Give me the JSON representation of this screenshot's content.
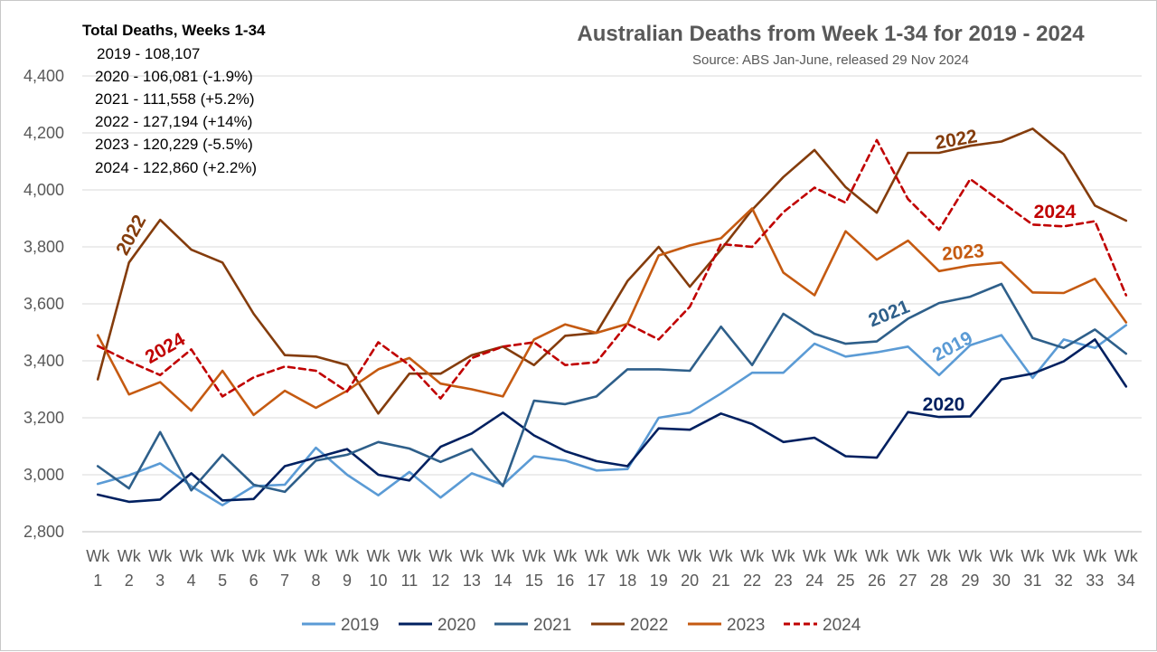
{
  "chart_data": {
    "type": "line",
    "title": "Australian Deaths from Week 1-34 for 2019 - 2024",
    "subtitle": "Source: ABS Jan-June, released 29 Nov 2024",
    "x_prefix": "Wk",
    "x": [
      "1",
      "2",
      "3",
      "4",
      "5",
      "6",
      "7",
      "8",
      "9",
      "10",
      "11",
      "12",
      "13",
      "14",
      "15",
      "16",
      "17",
      "18",
      "19",
      "20",
      "21",
      "22",
      "23",
      "24",
      "25",
      "26",
      "27",
      "28",
      "29",
      "30",
      "31",
      "32",
      "33",
      "34"
    ],
    "ylim": [
      2800,
      4400
    ],
    "yticks": [
      2800,
      3000,
      3200,
      3400,
      3600,
      3800,
      4000,
      4200,
      4400
    ],
    "ytick_labels": [
      "2,800",
      "3,000",
      "3,200",
      "3,400",
      "3,600",
      "3,800",
      "4,000",
      "4,200",
      "4,400"
    ],
    "grid": true,
    "legend_position": "bottom",
    "series": [
      {
        "name": "2019",
        "color": "#5B9BD5",
        "dash": false,
        "values": [
          2968,
          2998,
          3040,
          2960,
          2893,
          2960,
          2965,
          3095,
          3000,
          2928,
          3010,
          2920,
          3005,
          2965,
          3065,
          3050,
          3015,
          3020,
          3200,
          3218,
          3285,
          3358,
          3358,
          3460,
          3415,
          3430,
          3450,
          3350,
          3455,
          3490,
          3340,
          3475,
          3445,
          3525
        ]
      },
      {
        "name": "2020",
        "color": "#002060",
        "dash": false,
        "values": [
          2930,
          2905,
          2913,
          3005,
          2910,
          2915,
          3030,
          3060,
          3090,
          3000,
          2980,
          3098,
          3145,
          3218,
          3138,
          3083,
          3048,
          3030,
          3163,
          3158,
          3215,
          3178,
          3115,
          3130,
          3065,
          3060,
          3220,
          3203,
          3205,
          3335,
          3355,
          3398,
          3475,
          3310
        ]
      },
      {
        "name": "2021",
        "color": "#2E5F8A",
        "dash": false,
        "values": [
          3030,
          2952,
          3150,
          2945,
          3070,
          2965,
          2940,
          3050,
          3070,
          3115,
          3092,
          3045,
          3090,
          2960,
          3260,
          3248,
          3275,
          3370,
          3370,
          3365,
          3520,
          3385,
          3565,
          3495,
          3460,
          3468,
          3548,
          3603,
          3625,
          3670,
          3480,
          3445,
          3510,
          3425
        ]
      },
      {
        "name": "2022",
        "color": "#843C0C",
        "dash": false,
        "values": [
          3335,
          3745,
          3895,
          3790,
          3745,
          3565,
          3420,
          3415,
          3385,
          3215,
          3355,
          3355,
          3420,
          3450,
          3385,
          3488,
          3498,
          3680,
          3800,
          3660,
          3790,
          3930,
          4045,
          4140,
          4010,
          3920,
          4130,
          4130,
          4155,
          4170,
          4215,
          4125,
          3945,
          3892
        ]
      },
      {
        "name": "2023",
        "color": "#C55A11",
        "dash": false,
        "values": [
          3490,
          3282,
          3325,
          3225,
          3365,
          3210,
          3295,
          3235,
          3295,
          3370,
          3410,
          3320,
          3300,
          3275,
          3475,
          3528,
          3498,
          3530,
          3770,
          3805,
          3830,
          3935,
          3710,
          3630,
          3855,
          3755,
          3822,
          3715,
          3735,
          3745,
          3640,
          3638,
          3688,
          3535
        ]
      },
      {
        "name": "2024",
        "color": "#C00000",
        "dash": true,
        "values": [
          3452,
          3398,
          3350,
          3440,
          3275,
          3342,
          3380,
          3365,
          3292,
          3465,
          3385,
          3268,
          3410,
          3450,
          3465,
          3385,
          3395,
          3530,
          3475,
          3590,
          3810,
          3800,
          3922,
          4008,
          3955,
          4175,
          3968,
          3860,
          4038,
          3958,
          3878,
          3872,
          3890,
          3630
        ]
      }
    ],
    "series_labels": [
      {
        "text": "2022",
        "color": "#843C0C"
      },
      {
        "text": "2024",
        "color": "#C00000"
      },
      {
        "text": "2022",
        "color": "#843C0C"
      },
      {
        "text": "2024",
        "color": "#C00000"
      },
      {
        "text": "2023",
        "color": "#C55A11"
      },
      {
        "text": "2021",
        "color": "#2E5F8A"
      },
      {
        "text": "2019",
        "color": "#5B9BD5"
      },
      {
        "text": "2020",
        "color": "#002060"
      }
    ],
    "annotation": {
      "heading": "Total Deaths, Weeks 1-34",
      "lines": [
        "2019 - 108,107",
        "2020 - 106,081 (-1.9%)",
        "2021 - 111,558 (+5.2%)",
        "2022 - 127,194 (+14%)",
        "2023 - 120,229 (-5.5%)",
        "2024 - 122,860 (+2.2%)"
      ]
    }
  }
}
